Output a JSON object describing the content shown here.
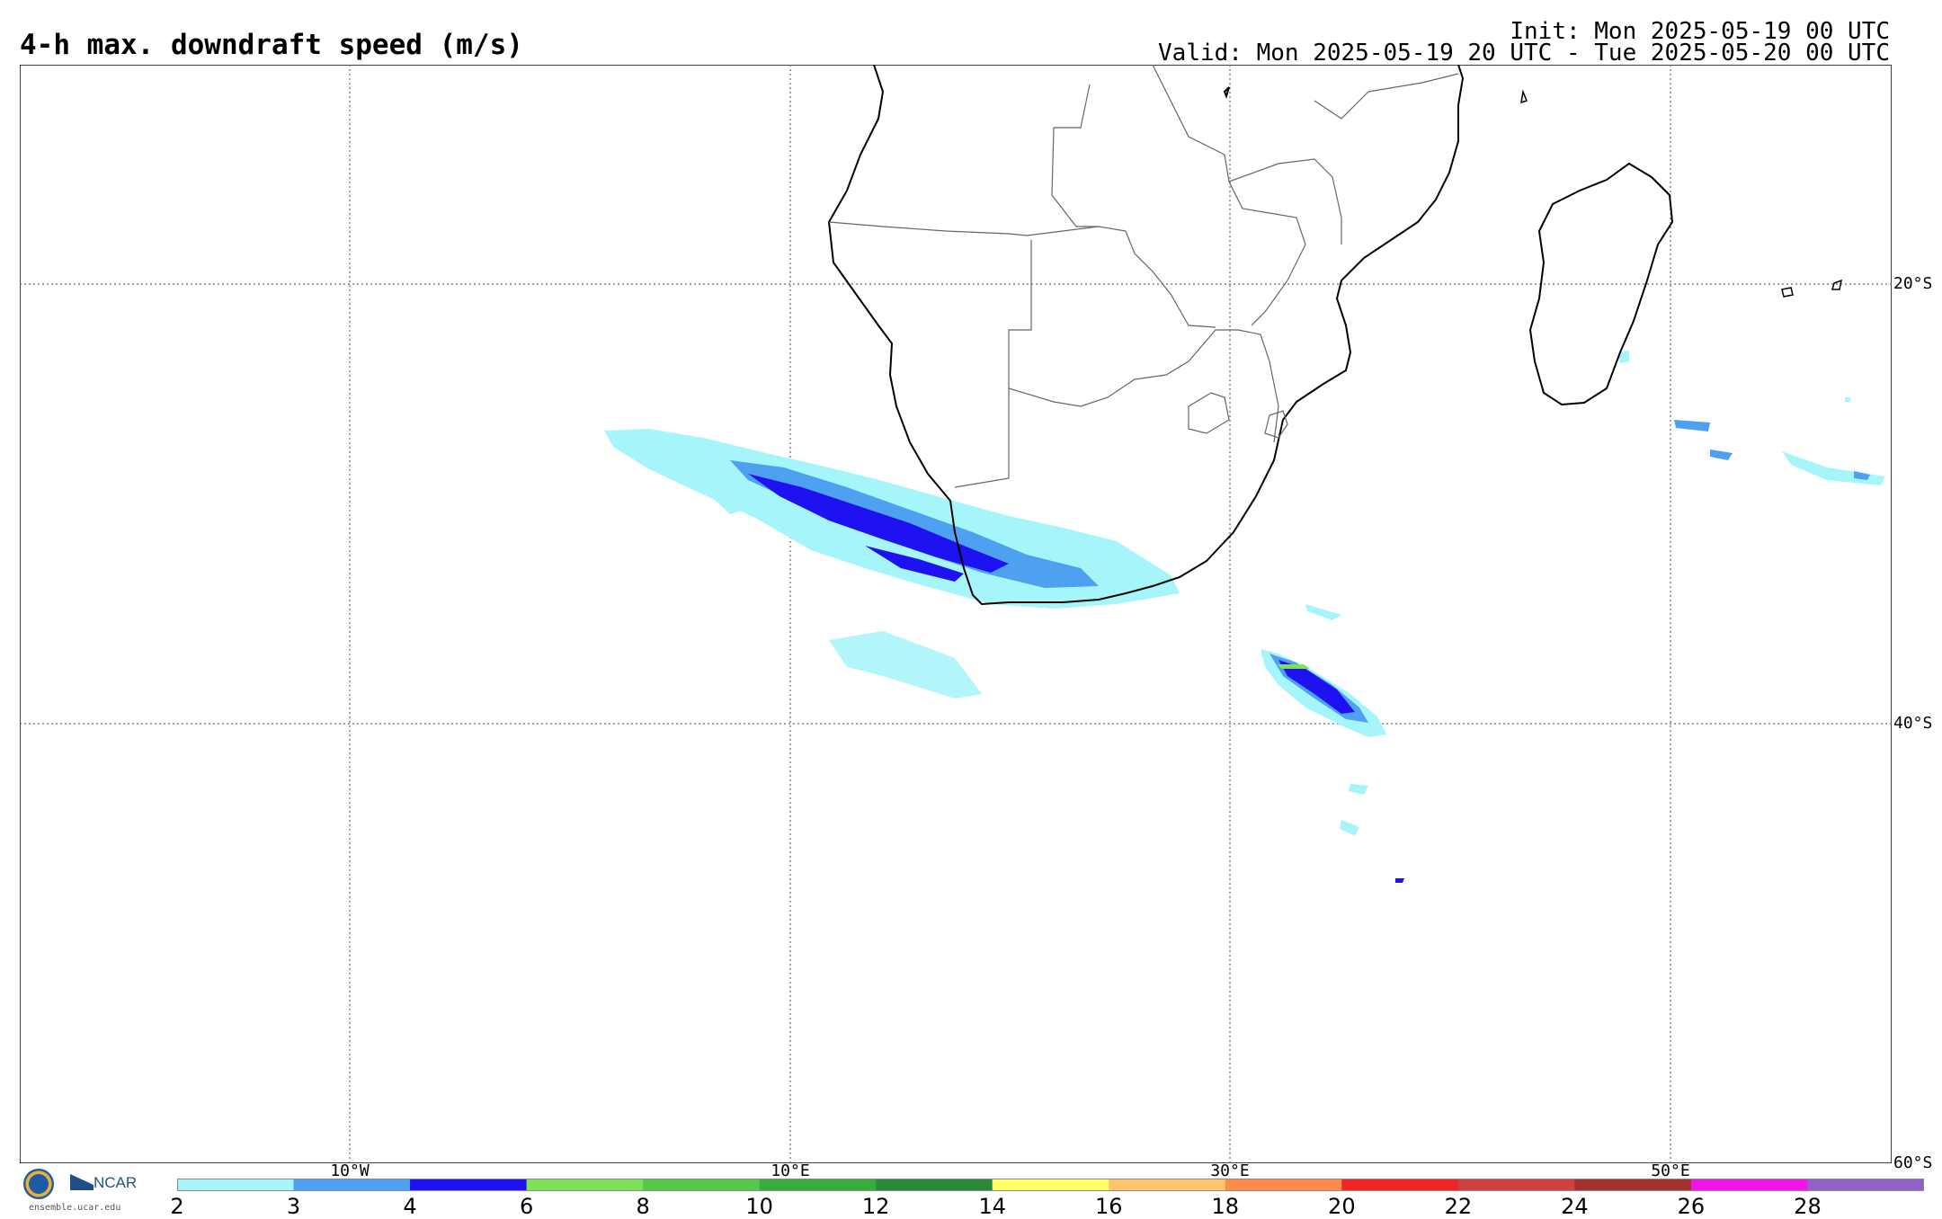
{
  "title": "4-h max. downdraft speed (m/s)",
  "init": "Init: Mon 2025-05-19 00 UTC",
  "valid": "Valid: Mon 2025-05-19 20 UTC - Tue 2025-05-20 00 UTC",
  "lat_labels": [
    "20°S",
    "40°S",
    "60°S"
  ],
  "lon_labels": [
    "10°W",
    "10°E",
    "30°E",
    "50°E"
  ],
  "colorbar": {
    "ticks": [
      "2",
      "3",
      "4",
      "6",
      "8",
      "10",
      "12",
      "14",
      "16",
      "18",
      "20",
      "22",
      "24",
      "26",
      "28"
    ],
    "colors": [
      "#a5f5fa",
      "#4ea1f0",
      "#1f12f0",
      "#7fe05a",
      "#57c94a",
      "#39ad3c",
      "#2a8a3a",
      "#ffff66",
      "#ffc56a",
      "#ff8c4a",
      "#f02525",
      "#cf4141",
      "#a53030",
      "#ef15e8",
      "#8f62c8"
    ]
  },
  "logo": {
    "org": "NCAR",
    "url": "ensemble.ucar.edu"
  },
  "colors": {
    "grid": "#555555",
    "coast": "#000000",
    "border": "#666666"
  }
}
